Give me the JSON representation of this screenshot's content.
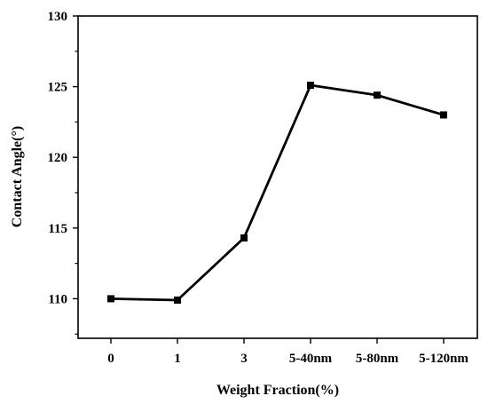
{
  "chart_data": {
    "type": "line",
    "title": "",
    "xlabel": "Weight Fraction(%)",
    "ylabel": "Contact Angle(°)",
    "categories": [
      "0",
      "1",
      "3",
      "5-40nm",
      "5-80nm",
      "5-120nm"
    ],
    "series": [
      {
        "values": [
          110.0,
          109.9,
          114.3,
          125.1,
          124.4,
          123.0
        ]
      }
    ],
    "ylim": [
      107.2,
      130
    ],
    "yticks": [
      110,
      115,
      120,
      125,
      130
    ],
    "grid": false,
    "legend": "none",
    "colors": {
      "line": "#000000",
      "marker": "#000000",
      "axis": "#000000"
    }
  }
}
